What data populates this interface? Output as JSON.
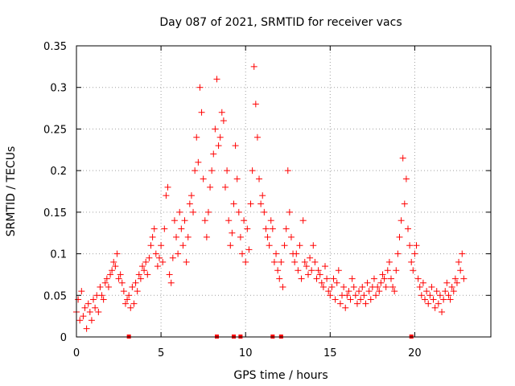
{
  "chart_data": {
    "type": "scatter",
    "title": "Day 087 of 2021, SRMTID for receiver vacs",
    "xlabel": "GPS time / hours",
    "ylabel": "SRMTID / TECUs",
    "xlim": [
      0,
      24.5
    ],
    "ylim": [
      0,
      0.35
    ],
    "x_ticks": [
      0,
      5,
      10,
      15,
      20
    ],
    "x_tick_labels": [
      "0",
      "5",
      "10",
      "15",
      "20"
    ],
    "y_ticks": [
      0,
      0.05,
      0.1,
      0.15,
      0.2,
      0.25,
      0.3,
      0.35
    ],
    "y_tick_labels": [
      "0",
      "0.05",
      "0.1",
      "0.15",
      "0.2",
      "0.25",
      "0.3",
      "0.35"
    ],
    "grid": true,
    "marker": "+",
    "series_color": "#ff0000",
    "series": [
      {
        "name": "SRMTID",
        "points": [
          [
            0.0,
            0.03
          ],
          [
            0.1,
            0.045
          ],
          [
            0.2,
            0.02
          ],
          [
            0.3,
            0.055
          ],
          [
            0.4,
            0.025
          ],
          [
            0.5,
            0.035
          ],
          [
            0.6,
            0.01
          ],
          [
            0.7,
            0.04
          ],
          [
            0.8,
            0.03
          ],
          [
            0.9,
            0.02
          ],
          [
            1.0,
            0.045
          ],
          [
            1.1,
            0.035
          ],
          [
            1.2,
            0.05
          ],
          [
            1.3,
            0.03
          ],
          [
            1.4,
            0.06
          ],
          [
            1.5,
            0.05
          ],
          [
            1.6,
            0.045
          ],
          [
            1.7,
            0.065
          ],
          [
            1.8,
            0.07
          ],
          [
            1.9,
            0.06
          ],
          [
            2.0,
            0.075
          ],
          [
            2.1,
            0.08
          ],
          [
            2.2,
            0.09
          ],
          [
            2.3,
            0.085
          ],
          [
            2.4,
            0.1
          ],
          [
            2.5,
            0.07
          ],
          [
            2.6,
            0.075
          ],
          [
            2.7,
            0.065
          ],
          [
            2.8,
            0.055
          ],
          [
            2.9,
            0.04
          ],
          [
            3.0,
            0.045
          ],
          [
            3.1,
            0.05
          ],
          [
            3.2,
            0.035
          ],
          [
            3.3,
            0.06
          ],
          [
            3.4,
            0.04
          ],
          [
            3.5,
            0.065
          ],
          [
            3.6,
            0.055
          ],
          [
            3.7,
            0.075
          ],
          [
            3.8,
            0.07
          ],
          [
            3.9,
            0.085
          ],
          [
            4.0,
            0.08
          ],
          [
            4.1,
            0.09
          ],
          [
            4.2,
            0.075
          ],
          [
            4.3,
            0.095
          ],
          [
            4.4,
            0.11
          ],
          [
            4.5,
            0.12
          ],
          [
            4.6,
            0.13
          ],
          [
            4.7,
            0.1
          ],
          [
            4.8,
            0.085
          ],
          [
            4.9,
            0.095
          ],
          [
            5.0,
            0.11
          ],
          [
            5.1,
            0.09
          ],
          [
            5.2,
            0.13
          ],
          [
            5.3,
            0.17
          ],
          [
            5.4,
            0.18
          ],
          [
            5.5,
            0.075
          ],
          [
            5.6,
            0.065
          ],
          [
            5.7,
            0.095
          ],
          [
            5.8,
            0.14
          ],
          [
            5.9,
            0.12
          ],
          [
            6.0,
            0.1
          ],
          [
            6.1,
            0.15
          ],
          [
            6.2,
            0.13
          ],
          [
            6.3,
            0.11
          ],
          [
            6.4,
            0.14
          ],
          [
            6.5,
            0.09
          ],
          [
            6.6,
            0.12
          ],
          [
            6.7,
            0.16
          ],
          [
            6.8,
            0.17
          ],
          [
            6.9,
            0.15
          ],
          [
            7.0,
            0.2
          ],
          [
            7.1,
            0.24
          ],
          [
            7.2,
            0.21
          ],
          [
            7.3,
            0.3
          ],
          [
            7.4,
            0.27
          ],
          [
            7.5,
            0.19
          ],
          [
            7.6,
            0.14
          ],
          [
            7.7,
            0.12
          ],
          [
            7.8,
            0.15
          ],
          [
            7.9,
            0.18
          ],
          [
            8.0,
            0.2
          ],
          [
            8.1,
            0.22
          ],
          [
            8.2,
            0.25
          ],
          [
            8.3,
            0.31
          ],
          [
            8.4,
            0.23
          ],
          [
            8.5,
            0.24
          ],
          [
            8.6,
            0.27
          ],
          [
            8.7,
            0.26
          ],
          [
            8.8,
            0.18
          ],
          [
            8.9,
            0.2
          ],
          [
            9.0,
            0.14
          ],
          [
            9.1,
            0.11
          ],
          [
            9.2,
            0.125
          ],
          [
            9.3,
            0.16
          ],
          [
            9.4,
            0.23
          ],
          [
            9.5,
            0.19
          ],
          [
            9.6,
            0.15
          ],
          [
            9.7,
            0.12
          ],
          [
            9.8,
            0.1
          ],
          [
            9.9,
            0.14
          ],
          [
            10.0,
            0.09
          ],
          [
            10.1,
            0.13
          ],
          [
            10.2,
            0.105
          ],
          [
            10.3,
            0.16
          ],
          [
            10.4,
            0.2
          ],
          [
            10.5,
            0.325
          ],
          [
            10.6,
            0.28
          ],
          [
            10.7,
            0.24
          ],
          [
            10.8,
            0.19
          ],
          [
            10.9,
            0.16
          ],
          [
            11.0,
            0.17
          ],
          [
            11.1,
            0.15
          ],
          [
            11.2,
            0.13
          ],
          [
            11.3,
            0.12
          ],
          [
            11.4,
            0.11
          ],
          [
            11.5,
            0.14
          ],
          [
            11.6,
            0.13
          ],
          [
            11.7,
            0.09
          ],
          [
            11.8,
            0.1
          ],
          [
            11.9,
            0.08
          ],
          [
            12.0,
            0.07
          ],
          [
            12.1,
            0.09
          ],
          [
            12.2,
            0.06
          ],
          [
            12.3,
            0.11
          ],
          [
            12.4,
            0.13
          ],
          [
            12.5,
            0.2
          ],
          [
            12.6,
            0.15
          ],
          [
            12.7,
            0.12
          ],
          [
            12.8,
            0.1
          ],
          [
            12.9,
            0.09
          ],
          [
            13.0,
            0.1
          ],
          [
            13.1,
            0.08
          ],
          [
            13.2,
            0.11
          ],
          [
            13.3,
            0.07
          ],
          [
            13.4,
            0.14
          ],
          [
            13.5,
            0.09
          ],
          [
            13.6,
            0.085
          ],
          [
            13.7,
            0.075
          ],
          [
            13.8,
            0.095
          ],
          [
            13.9,
            0.08
          ],
          [
            14.0,
            0.11
          ],
          [
            14.1,
            0.09
          ],
          [
            14.2,
            0.07
          ],
          [
            14.3,
            0.08
          ],
          [
            14.4,
            0.075
          ],
          [
            14.5,
            0.065
          ],
          [
            14.6,
            0.06
          ],
          [
            14.7,
            0.085
          ],
          [
            14.8,
            0.07
          ],
          [
            14.9,
            0.055
          ],
          [
            15.0,
            0.05
          ],
          [
            15.1,
            0.06
          ],
          [
            15.2,
            0.07
          ],
          [
            15.3,
            0.045
          ],
          [
            15.4,
            0.065
          ],
          [
            15.5,
            0.08
          ],
          [
            15.6,
            0.04
          ],
          [
            15.7,
            0.05
          ],
          [
            15.8,
            0.06
          ],
          [
            15.9,
            0.035
          ],
          [
            16.0,
            0.05
          ],
          [
            16.1,
            0.055
          ],
          [
            16.2,
            0.045
          ],
          [
            16.3,
            0.07
          ],
          [
            16.4,
            0.06
          ],
          [
            16.5,
            0.05
          ],
          [
            16.6,
            0.04
          ],
          [
            16.7,
            0.055
          ],
          [
            16.8,
            0.045
          ],
          [
            16.9,
            0.06
          ],
          [
            17.0,
            0.05
          ],
          [
            17.1,
            0.04
          ],
          [
            17.2,
            0.065
          ],
          [
            17.3,
            0.055
          ],
          [
            17.4,
            0.045
          ],
          [
            17.5,
            0.06
          ],
          [
            17.6,
            0.07
          ],
          [
            17.7,
            0.05
          ],
          [
            17.8,
            0.06
          ],
          [
            17.9,
            0.055
          ],
          [
            18.0,
            0.065
          ],
          [
            18.1,
            0.075
          ],
          [
            18.2,
            0.07
          ],
          [
            18.3,
            0.06
          ],
          [
            18.4,
            0.08
          ],
          [
            18.5,
            0.09
          ],
          [
            18.6,
            0.07
          ],
          [
            18.7,
            0.06
          ],
          [
            18.8,
            0.055
          ],
          [
            18.9,
            0.08
          ],
          [
            19.0,
            0.1
          ],
          [
            19.1,
            0.12
          ],
          [
            19.2,
            0.14
          ],
          [
            19.3,
            0.215
          ],
          [
            19.4,
            0.16
          ],
          [
            19.5,
            0.19
          ],
          [
            19.6,
            0.13
          ],
          [
            19.7,
            0.11
          ],
          [
            19.8,
            0.09
          ],
          [
            19.9,
            0.08
          ],
          [
            20.0,
            0.1
          ],
          [
            20.1,
            0.11
          ],
          [
            20.2,
            0.07
          ],
          [
            20.3,
            0.06
          ],
          [
            20.4,
            0.05
          ],
          [
            20.5,
            0.065
          ],
          [
            20.6,
            0.045
          ],
          [
            20.7,
            0.055
          ],
          [
            20.8,
            0.04
          ],
          [
            20.9,
            0.05
          ],
          [
            21.0,
            0.06
          ],
          [
            21.1,
            0.045
          ],
          [
            21.2,
            0.035
          ],
          [
            21.3,
            0.055
          ],
          [
            21.4,
            0.04
          ],
          [
            21.5,
            0.05
          ],
          [
            21.6,
            0.03
          ],
          [
            21.7,
            0.045
          ],
          [
            21.8,
            0.055
          ],
          [
            21.9,
            0.065
          ],
          [
            22.0,
            0.05
          ],
          [
            22.1,
            0.045
          ],
          [
            22.2,
            0.06
          ],
          [
            22.3,
            0.055
          ],
          [
            22.4,
            0.07
          ],
          [
            22.5,
            0.065
          ],
          [
            22.6,
            0.09
          ],
          [
            22.7,
            0.08
          ],
          [
            22.8,
            0.1
          ],
          [
            22.9,
            0.07
          ]
        ]
      }
    ],
    "gap_markers_x": [
      3.1,
      8.3,
      9.3,
      9.7,
      11.6,
      12.1,
      19.8
    ]
  }
}
